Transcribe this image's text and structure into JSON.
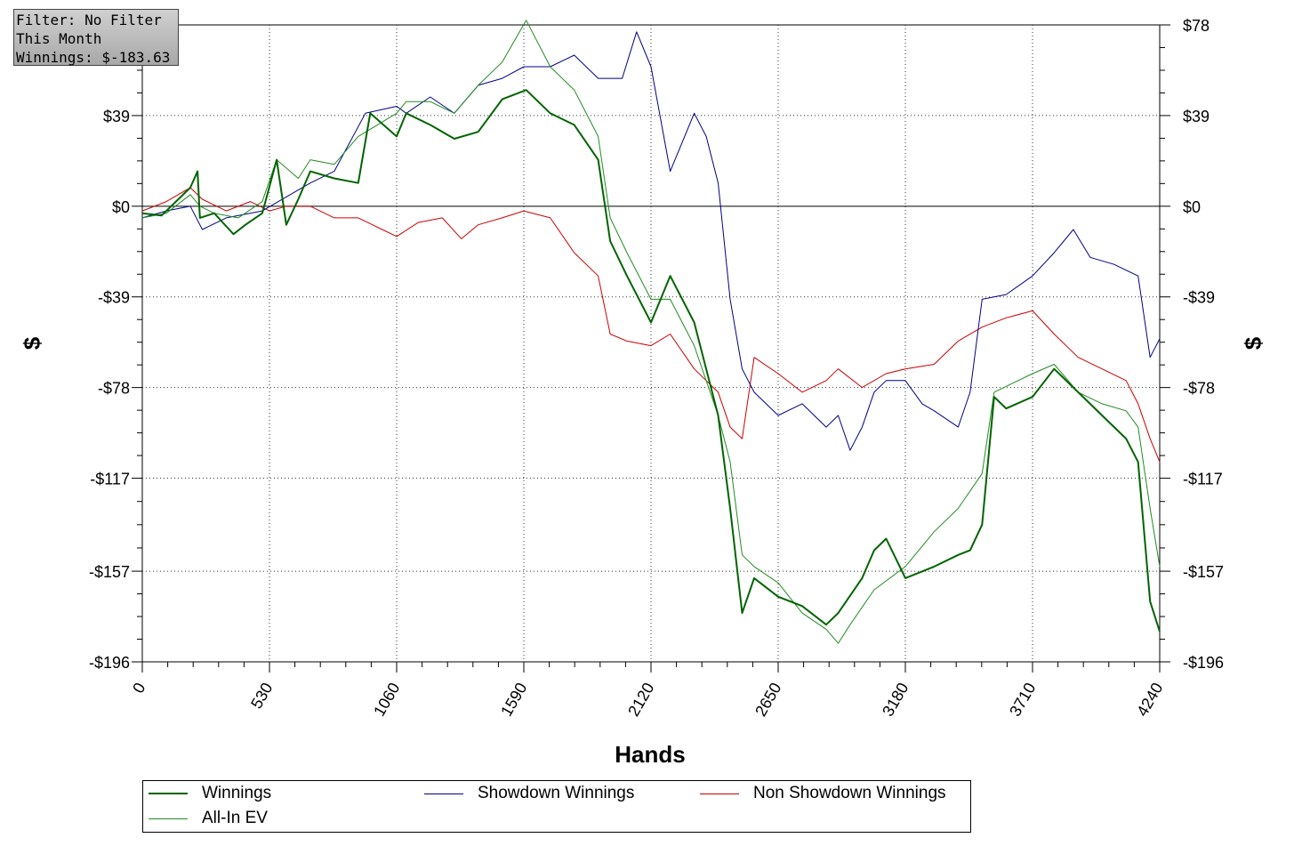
{
  "info": {
    "filter": "Filter: No Filter",
    "period": "This Month",
    "winnings": "Winnings: $-183.63"
  },
  "colors": {
    "winnings": "#006400",
    "allin": "#228b22",
    "showdown": "#00008b",
    "nonshowdown": "#cc0000"
  },
  "chart_data": {
    "type": "line",
    "xlabel": "Hands",
    "ylabel": "$",
    "xlim": [
      0,
      4240
    ],
    "ylim": [
      -196,
      78
    ],
    "xticks": [
      0,
      530,
      1060,
      1590,
      2120,
      2650,
      3180,
      3710,
      4240
    ],
    "yticks": [
      78,
      39,
      0,
      -39,
      -78,
      -117,
      -157,
      -196
    ],
    "ytick_labels": [
      "$78",
      "$39",
      "$0",
      "-$39",
      "-$78",
      "-$117",
      "-$157",
      "-$196"
    ],
    "grid": true,
    "legend_position": "bottom",
    "series": [
      {
        "name": "Winnings",
        "color": "#006400",
        "width": 2,
        "points": [
          [
            0,
            -3
          ],
          [
            80,
            -4
          ],
          [
            150,
            3
          ],
          [
            200,
            8
          ],
          [
            230,
            15
          ],
          [
            240,
            -5
          ],
          [
            300,
            -3
          ],
          [
            380,
            -12
          ],
          [
            430,
            -8
          ],
          [
            500,
            -3
          ],
          [
            560,
            20
          ],
          [
            600,
            -8
          ],
          [
            650,
            3
          ],
          [
            700,
            15
          ],
          [
            800,
            12
          ],
          [
            900,
            10
          ],
          [
            950,
            40
          ],
          [
            1060,
            30
          ],
          [
            1100,
            40
          ],
          [
            1200,
            35
          ],
          [
            1300,
            29
          ],
          [
            1400,
            32
          ],
          [
            1500,
            46
          ],
          [
            1600,
            50
          ],
          [
            1700,
            40
          ],
          [
            1800,
            35
          ],
          [
            1900,
            20
          ],
          [
            1950,
            -15
          ],
          [
            2020,
            -30
          ],
          [
            2120,
            -50
          ],
          [
            2200,
            -30
          ],
          [
            2300,
            -50
          ],
          [
            2400,
            -90
          ],
          [
            2450,
            -130
          ],
          [
            2500,
            -175
          ],
          [
            2550,
            -160
          ],
          [
            2650,
            -168
          ],
          [
            2750,
            -172
          ],
          [
            2850,
            -180
          ],
          [
            2900,
            -175
          ],
          [
            3000,
            -160
          ],
          [
            3050,
            -148
          ],
          [
            3100,
            -143
          ],
          [
            3180,
            -160
          ],
          [
            3300,
            -155
          ],
          [
            3400,
            -150
          ],
          [
            3450,
            -148
          ],
          [
            3500,
            -137
          ],
          [
            3550,
            -82
          ],
          [
            3600,
            -87
          ],
          [
            3710,
            -82
          ],
          [
            3800,
            -70
          ],
          [
            3900,
            -80
          ],
          [
            4000,
            -90
          ],
          [
            4100,
            -100
          ],
          [
            4150,
            -110
          ],
          [
            4200,
            -170
          ],
          [
            4240,
            -183
          ]
        ]
      },
      {
        "name": "All-In EV",
        "color": "#228b22",
        "width": 1,
        "points": [
          [
            0,
            -5
          ],
          [
            100,
            -3
          ],
          [
            200,
            5
          ],
          [
            240,
            0
          ],
          [
            300,
            -3
          ],
          [
            400,
            -5
          ],
          [
            500,
            2
          ],
          [
            560,
            20
          ],
          [
            650,
            12
          ],
          [
            700,
            20
          ],
          [
            800,
            18
          ],
          [
            900,
            30
          ],
          [
            1060,
            40
          ],
          [
            1100,
            45
          ],
          [
            1200,
            45
          ],
          [
            1300,
            40
          ],
          [
            1400,
            52
          ],
          [
            1500,
            62
          ],
          [
            1600,
            80
          ],
          [
            1700,
            60
          ],
          [
            1800,
            50
          ],
          [
            1900,
            30
          ],
          [
            1950,
            -5
          ],
          [
            2020,
            -20
          ],
          [
            2120,
            -40
          ],
          [
            2200,
            -40
          ],
          [
            2300,
            -60
          ],
          [
            2400,
            -90
          ],
          [
            2450,
            -110
          ],
          [
            2500,
            -150
          ],
          [
            2550,
            -155
          ],
          [
            2650,
            -162
          ],
          [
            2750,
            -175
          ],
          [
            2850,
            -182
          ],
          [
            2900,
            -188
          ],
          [
            2950,
            -180
          ],
          [
            3050,
            -165
          ],
          [
            3180,
            -155
          ],
          [
            3300,
            -140
          ],
          [
            3400,
            -130
          ],
          [
            3500,
            -115
          ],
          [
            3550,
            -80
          ],
          [
            3710,
            -72
          ],
          [
            3800,
            -68
          ],
          [
            3900,
            -80
          ],
          [
            4000,
            -85
          ],
          [
            4100,
            -88
          ],
          [
            4150,
            -95
          ],
          [
            4200,
            -130
          ],
          [
            4240,
            -155
          ]
        ]
      },
      {
        "name": "Showdown Winnings",
        "color": "#00008b",
        "width": 1,
        "points": [
          [
            0,
            -5
          ],
          [
            100,
            -2
          ],
          [
            200,
            0
          ],
          [
            250,
            -10
          ],
          [
            350,
            -5
          ],
          [
            500,
            -2
          ],
          [
            700,
            10
          ],
          [
            800,
            15
          ],
          [
            930,
            40
          ],
          [
            1060,
            43
          ],
          [
            1100,
            40
          ],
          [
            1200,
            47
          ],
          [
            1300,
            40
          ],
          [
            1400,
            52
          ],
          [
            1500,
            55
          ],
          [
            1590,
            60
          ],
          [
            1700,
            60
          ],
          [
            1800,
            65
          ],
          [
            1900,
            55
          ],
          [
            2000,
            55
          ],
          [
            2060,
            75
          ],
          [
            2120,
            60
          ],
          [
            2200,
            15
          ],
          [
            2300,
            40
          ],
          [
            2350,
            30
          ],
          [
            2400,
            10
          ],
          [
            2450,
            -40
          ],
          [
            2500,
            -70
          ],
          [
            2550,
            -80
          ],
          [
            2650,
            -90
          ],
          [
            2750,
            -85
          ],
          [
            2850,
            -95
          ],
          [
            2900,
            -90
          ],
          [
            2950,
            -105
          ],
          [
            3000,
            -95
          ],
          [
            3050,
            -80
          ],
          [
            3100,
            -75
          ],
          [
            3180,
            -75
          ],
          [
            3250,
            -85
          ],
          [
            3300,
            -88
          ],
          [
            3400,
            -95
          ],
          [
            3450,
            -80
          ],
          [
            3500,
            -40
          ],
          [
            3600,
            -38
          ],
          [
            3710,
            -30
          ],
          [
            3800,
            -20
          ],
          [
            3880,
            -10
          ],
          [
            3950,
            -22
          ],
          [
            4050,
            -25
          ],
          [
            4150,
            -30
          ],
          [
            4200,
            -65
          ],
          [
            4240,
            -57
          ]
        ]
      },
      {
        "name": "Non Showdown Winnings",
        "color": "#cc0000",
        "width": 1,
        "points": [
          [
            0,
            -2
          ],
          [
            100,
            2
          ],
          [
            200,
            8
          ],
          [
            250,
            3
          ],
          [
            350,
            -2
          ],
          [
            450,
            2
          ],
          [
            530,
            -2
          ],
          [
            600,
            0
          ],
          [
            700,
            0
          ],
          [
            800,
            -5
          ],
          [
            900,
            -5
          ],
          [
            1000,
            -10
          ],
          [
            1060,
            -13
          ],
          [
            1150,
            -7
          ],
          [
            1250,
            -5
          ],
          [
            1330,
            -14
          ],
          [
            1400,
            -8
          ],
          [
            1500,
            -5
          ],
          [
            1590,
            -2
          ],
          [
            1700,
            -5
          ],
          [
            1800,
            -20
          ],
          [
            1900,
            -30
          ],
          [
            1950,
            -55
          ],
          [
            2020,
            -58
          ],
          [
            2120,
            -60
          ],
          [
            2200,
            -55
          ],
          [
            2300,
            -70
          ],
          [
            2400,
            -80
          ],
          [
            2450,
            -95
          ],
          [
            2500,
            -100
          ],
          [
            2550,
            -65
          ],
          [
            2650,
            -72
          ],
          [
            2750,
            -80
          ],
          [
            2850,
            -75
          ],
          [
            2900,
            -70
          ],
          [
            3000,
            -78
          ],
          [
            3100,
            -72
          ],
          [
            3180,
            -70
          ],
          [
            3300,
            -68
          ],
          [
            3400,
            -58
          ],
          [
            3500,
            -52
          ],
          [
            3600,
            -48
          ],
          [
            3710,
            -45
          ],
          [
            3800,
            -55
          ],
          [
            3900,
            -65
          ],
          [
            4000,
            -70
          ],
          [
            4100,
            -75
          ],
          [
            4150,
            -85
          ],
          [
            4200,
            -100
          ],
          [
            4240,
            -110
          ]
        ]
      }
    ]
  }
}
